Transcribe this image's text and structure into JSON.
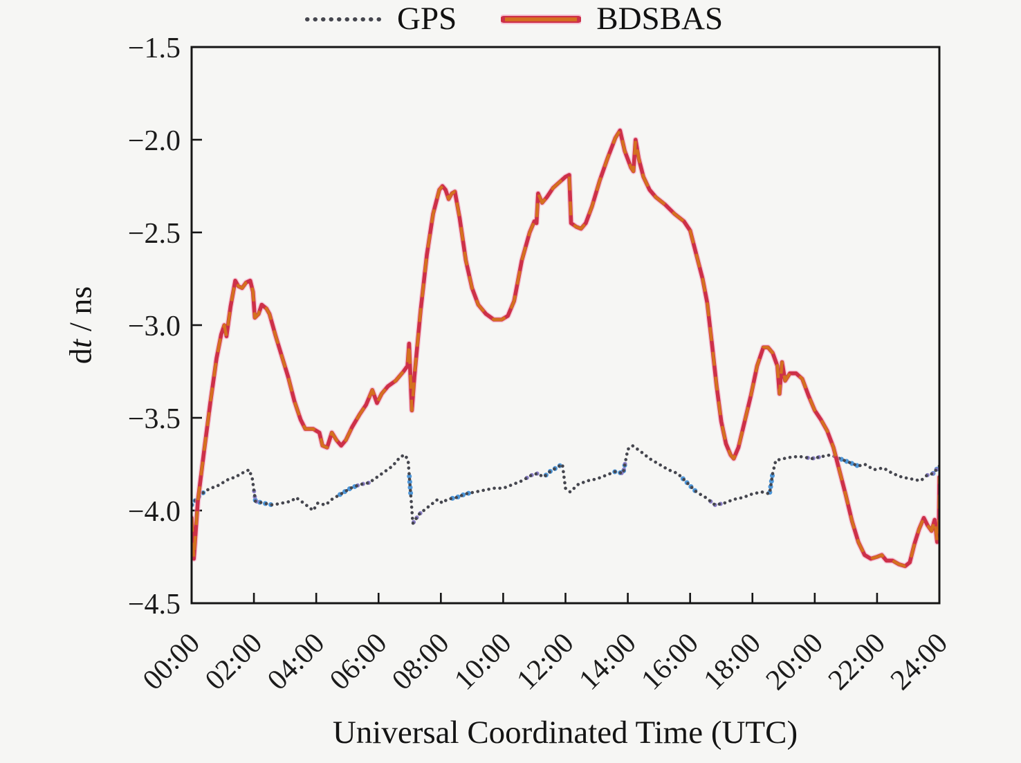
{
  "figure": {
    "background": "#f6f6f4",
    "legend": {
      "items": [
        {
          "label": "GPS",
          "style": "dotted",
          "color": "#45464e",
          "accent_blue": "#4e97d9",
          "accent_purple": "#8b7fc7"
        },
        {
          "label": "BDSBAS",
          "style": "solid",
          "color": "#cd3049",
          "overlay_color": "#d4711f",
          "edge_color": "#f5a0bf"
        }
      ]
    }
  },
  "chart_data": {
    "type": "line",
    "title": "",
    "xlabel": "Universal Coordinated Time (UTC)",
    "ylabel": "dt / ns",
    "ylabel_parts": [
      "d",
      "t",
      " / ns"
    ],
    "xlim": [
      0,
      24
    ],
    "ylim": [
      -4.5,
      -1.5
    ],
    "grid": false,
    "legend_position": "top-center",
    "x_ticks": [
      0,
      2,
      4,
      6,
      8,
      10,
      12,
      14,
      16,
      18,
      20,
      22,
      24
    ],
    "x_tick_labels": [
      "00:00",
      "02:00",
      "04:00",
      "06:00",
      "08:00",
      "10:00",
      "12:00",
      "14:00",
      "16:00",
      "18:00",
      "20:00",
      "22:00",
      "24:00"
    ],
    "y_ticks": [
      -1.5,
      -2.0,
      -2.5,
      -3.0,
      -3.5,
      -4.0,
      -4.5
    ],
    "y_tick_labels": [
      "−1.5",
      "−2.0",
      "−2.5",
      "−3.0",
      "−3.5",
      "−4.0",
      "−4.5"
    ],
    "series": [
      {
        "name": "GPS",
        "line_style": "dotted",
        "color": "#45464e",
        "points": [
          [
            0.0,
            -3.97
          ],
          [
            0.2,
            -3.93
          ],
          [
            0.4,
            -3.9
          ],
          [
            0.6,
            -3.88
          ],
          [
            0.8,
            -3.87
          ],
          [
            1.0,
            -3.85
          ],
          [
            1.2,
            -3.83
          ],
          [
            1.4,
            -3.82
          ],
          [
            1.6,
            -3.8
          ],
          [
            1.85,
            -3.78
          ],
          [
            1.95,
            -3.83
          ],
          [
            2.05,
            -3.95
          ],
          [
            2.3,
            -3.96
          ],
          [
            2.6,
            -3.97
          ],
          [
            2.9,
            -3.96
          ],
          [
            3.2,
            -3.95
          ],
          [
            3.35,
            -3.93
          ],
          [
            3.6,
            -3.96
          ],
          [
            3.9,
            -4.0
          ],
          [
            4.05,
            -3.96
          ],
          [
            4.3,
            -3.97
          ],
          [
            4.5,
            -3.94
          ],
          [
            4.8,
            -3.91
          ],
          [
            5.1,
            -3.88
          ],
          [
            5.4,
            -3.86
          ],
          [
            5.7,
            -3.85
          ],
          [
            5.95,
            -3.82
          ],
          [
            6.2,
            -3.79
          ],
          [
            6.45,
            -3.76
          ],
          [
            6.7,
            -3.71
          ],
          [
            6.85,
            -3.7
          ],
          [
            6.95,
            -3.73
          ],
          [
            7.05,
            -3.95
          ],
          [
            7.1,
            -4.07
          ],
          [
            7.3,
            -4.02
          ],
          [
            7.6,
            -3.98
          ],
          [
            7.9,
            -3.94
          ],
          [
            8.05,
            -3.96
          ],
          [
            8.2,
            -3.94
          ],
          [
            8.5,
            -3.93
          ],
          [
            8.8,
            -3.91
          ],
          [
            9.1,
            -3.9
          ],
          [
            9.4,
            -3.89
          ],
          [
            9.7,
            -3.88
          ],
          [
            10.0,
            -3.88
          ],
          [
            10.3,
            -3.86
          ],
          [
            10.6,
            -3.84
          ],
          [
            10.9,
            -3.81
          ],
          [
            11.1,
            -3.8
          ],
          [
            11.3,
            -3.82
          ],
          [
            11.5,
            -3.79
          ],
          [
            11.7,
            -3.77
          ],
          [
            11.9,
            -3.75
          ],
          [
            12.0,
            -3.88
          ],
          [
            12.15,
            -3.9
          ],
          [
            12.4,
            -3.86
          ],
          [
            12.7,
            -3.84
          ],
          [
            13.0,
            -3.83
          ],
          [
            13.3,
            -3.81
          ],
          [
            13.6,
            -3.79
          ],
          [
            13.85,
            -3.8
          ],
          [
            14.0,
            -3.67
          ],
          [
            14.15,
            -3.65
          ],
          [
            14.4,
            -3.68
          ],
          [
            14.7,
            -3.72
          ],
          [
            15.0,
            -3.75
          ],
          [
            15.3,
            -3.78
          ],
          [
            15.6,
            -3.8
          ],
          [
            15.9,
            -3.85
          ],
          [
            16.2,
            -3.9
          ],
          [
            16.5,
            -3.93
          ],
          [
            16.8,
            -3.97
          ],
          [
            17.1,
            -3.96
          ],
          [
            17.4,
            -3.94
          ],
          [
            17.7,
            -3.93
          ],
          [
            18.0,
            -3.91
          ],
          [
            18.3,
            -3.9
          ],
          [
            18.55,
            -3.91
          ],
          [
            18.65,
            -3.8
          ],
          [
            18.75,
            -3.73
          ],
          [
            19.0,
            -3.72
          ],
          [
            19.3,
            -3.71
          ],
          [
            19.6,
            -3.71
          ],
          [
            19.9,
            -3.72
          ],
          [
            20.2,
            -3.71
          ],
          [
            20.5,
            -3.7
          ],
          [
            20.8,
            -3.72
          ],
          [
            21.1,
            -3.74
          ],
          [
            21.4,
            -3.76
          ],
          [
            21.6,
            -3.75
          ],
          [
            21.9,
            -3.78
          ],
          [
            22.2,
            -3.77
          ],
          [
            22.5,
            -3.8
          ],
          [
            22.8,
            -3.82
          ],
          [
            23.1,
            -3.83
          ],
          [
            23.4,
            -3.84
          ],
          [
            23.6,
            -3.81
          ],
          [
            23.8,
            -3.8
          ],
          [
            24.0,
            -3.76
          ]
        ]
      },
      {
        "name": "BDSBAS",
        "line_style": "solid",
        "color": "#cd3049",
        "points": [
          [
            0.0,
            -4.04
          ],
          [
            0.07,
            -4.26
          ],
          [
            0.2,
            -3.95
          ],
          [
            0.4,
            -3.68
          ],
          [
            0.6,
            -3.42
          ],
          [
            0.8,
            -3.18
          ],
          [
            0.95,
            -3.05
          ],
          [
            1.05,
            -3.0
          ],
          [
            1.12,
            -3.06
          ],
          [
            1.25,
            -2.9
          ],
          [
            1.4,
            -2.76
          ],
          [
            1.5,
            -2.79
          ],
          [
            1.62,
            -2.8
          ],
          [
            1.75,
            -2.77
          ],
          [
            1.88,
            -2.76
          ],
          [
            1.97,
            -2.82
          ],
          [
            2.03,
            -2.96
          ],
          [
            2.15,
            -2.94
          ],
          [
            2.25,
            -2.89
          ],
          [
            2.4,
            -2.91
          ],
          [
            2.5,
            -2.94
          ],
          [
            2.7,
            -3.06
          ],
          [
            2.9,
            -3.17
          ],
          [
            3.1,
            -3.28
          ],
          [
            3.3,
            -3.41
          ],
          [
            3.5,
            -3.51
          ],
          [
            3.65,
            -3.56
          ],
          [
            3.9,
            -3.56
          ],
          [
            4.1,
            -3.58
          ],
          [
            4.2,
            -3.65
          ],
          [
            4.35,
            -3.66
          ],
          [
            4.5,
            -3.58
          ],
          [
            4.65,
            -3.62
          ],
          [
            4.8,
            -3.65
          ],
          [
            4.95,
            -3.62
          ],
          [
            5.15,
            -3.55
          ],
          [
            5.4,
            -3.48
          ],
          [
            5.6,
            -3.43
          ],
          [
            5.8,
            -3.35
          ],
          [
            5.95,
            -3.42
          ],
          [
            6.1,
            -3.37
          ],
          [
            6.3,
            -3.33
          ],
          [
            6.55,
            -3.3
          ],
          [
            6.8,
            -3.25
          ],
          [
            6.93,
            -3.22
          ],
          [
            6.98,
            -3.1
          ],
          [
            7.03,
            -3.3
          ],
          [
            7.07,
            -3.46
          ],
          [
            7.15,
            -3.28
          ],
          [
            7.35,
            -2.92
          ],
          [
            7.55,
            -2.62
          ],
          [
            7.75,
            -2.4
          ],
          [
            7.95,
            -2.27
          ],
          [
            8.05,
            -2.25
          ],
          [
            8.15,
            -2.27
          ],
          [
            8.25,
            -2.32
          ],
          [
            8.35,
            -2.29
          ],
          [
            8.45,
            -2.28
          ],
          [
            8.6,
            -2.42
          ],
          [
            8.8,
            -2.65
          ],
          [
            9.0,
            -2.8
          ],
          [
            9.2,
            -2.89
          ],
          [
            9.45,
            -2.94
          ],
          [
            9.7,
            -2.97
          ],
          [
            9.95,
            -2.97
          ],
          [
            10.15,
            -2.95
          ],
          [
            10.35,
            -2.87
          ],
          [
            10.6,
            -2.65
          ],
          [
            10.85,
            -2.5
          ],
          [
            11.0,
            -2.44
          ],
          [
            11.07,
            -2.45
          ],
          [
            11.12,
            -2.29
          ],
          [
            11.25,
            -2.34
          ],
          [
            11.4,
            -2.31
          ],
          [
            11.6,
            -2.26
          ],
          [
            11.8,
            -2.23
          ],
          [
            12.0,
            -2.2
          ],
          [
            12.12,
            -2.19
          ],
          [
            12.18,
            -2.45
          ],
          [
            12.35,
            -2.47
          ],
          [
            12.5,
            -2.48
          ],
          [
            12.65,
            -2.45
          ],
          [
            12.85,
            -2.36
          ],
          [
            13.1,
            -2.22
          ],
          [
            13.35,
            -2.1
          ],
          [
            13.6,
            -1.99
          ],
          [
            13.75,
            -1.95
          ],
          [
            13.9,
            -2.06
          ],
          [
            14.1,
            -2.15
          ],
          [
            14.18,
            -2.17
          ],
          [
            14.25,
            -2.0
          ],
          [
            14.35,
            -2.1
          ],
          [
            14.5,
            -2.2
          ],
          [
            14.7,
            -2.27
          ],
          [
            14.9,
            -2.31
          ],
          [
            15.2,
            -2.35
          ],
          [
            15.5,
            -2.4
          ],
          [
            15.8,
            -2.44
          ],
          [
            16.0,
            -2.49
          ],
          [
            16.2,
            -2.62
          ],
          [
            16.4,
            -2.75
          ],
          [
            16.55,
            -2.88
          ],
          [
            16.7,
            -3.1
          ],
          [
            16.85,
            -3.33
          ],
          [
            17.0,
            -3.52
          ],
          [
            17.15,
            -3.64
          ],
          [
            17.3,
            -3.7
          ],
          [
            17.4,
            -3.72
          ],
          [
            17.55,
            -3.66
          ],
          [
            17.75,
            -3.52
          ],
          [
            17.95,
            -3.38
          ],
          [
            18.15,
            -3.22
          ],
          [
            18.35,
            -3.12
          ],
          [
            18.5,
            -3.12
          ],
          [
            18.65,
            -3.15
          ],
          [
            18.8,
            -3.22
          ],
          [
            18.87,
            -3.37
          ],
          [
            18.95,
            -3.2
          ],
          [
            19.05,
            -3.3
          ],
          [
            19.2,
            -3.26
          ],
          [
            19.4,
            -3.26
          ],
          [
            19.6,
            -3.29
          ],
          [
            19.8,
            -3.38
          ],
          [
            20.0,
            -3.46
          ],
          [
            20.2,
            -3.51
          ],
          [
            20.4,
            -3.57
          ],
          [
            20.6,
            -3.66
          ],
          [
            20.8,
            -3.79
          ],
          [
            21.0,
            -3.92
          ],
          [
            21.2,
            -4.06
          ],
          [
            21.4,
            -4.17
          ],
          [
            21.6,
            -4.24
          ],
          [
            21.8,
            -4.26
          ],
          [
            22.0,
            -4.25
          ],
          [
            22.15,
            -4.24
          ],
          [
            22.3,
            -4.27
          ],
          [
            22.5,
            -4.27
          ],
          [
            22.7,
            -4.29
          ],
          [
            22.9,
            -4.3
          ],
          [
            23.05,
            -4.28
          ],
          [
            23.2,
            -4.18
          ],
          [
            23.35,
            -4.1
          ],
          [
            23.5,
            -4.04
          ],
          [
            23.62,
            -4.08
          ],
          [
            23.75,
            -4.11
          ],
          [
            23.85,
            -4.05
          ],
          [
            23.93,
            -4.17
          ],
          [
            23.98,
            -4.16
          ],
          [
            24.0,
            -3.82
          ]
        ]
      }
    ]
  }
}
